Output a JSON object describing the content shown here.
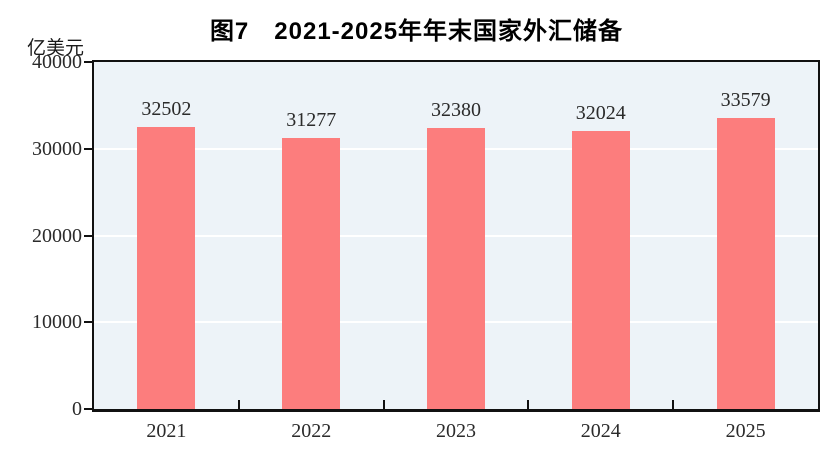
{
  "title": "图7　2021-2025年年末国家外汇储备",
  "unit_label": "亿美元",
  "colors": {
    "bar": "#FC7D7D",
    "plot_bg": "#EDF3F8",
    "axis": "#111111",
    "gridline": "#FFFFFF",
    "text": "#2B2B2B"
  },
  "chart_data": {
    "type": "bar",
    "title": "图7　2021-2025年年末国家外汇储备",
    "categories": [
      "2021",
      "2022",
      "2023",
      "2024",
      "2025"
    ],
    "values": [
      32502,
      31277,
      32380,
      32024,
      33579
    ],
    "data_labels": [
      32502,
      31277,
      32380,
      32024,
      33579
    ],
    "xlabel": "",
    "ylabel": "亿美元",
    "ylim": [
      0,
      40000
    ],
    "yticks": [
      0,
      10000,
      20000,
      30000,
      40000
    ],
    "grid": "horizontal white gridlines at interior y-ticks",
    "legend": "none",
    "plot_background": "#EDF3F8",
    "bar_color": "#FC7D7D"
  }
}
